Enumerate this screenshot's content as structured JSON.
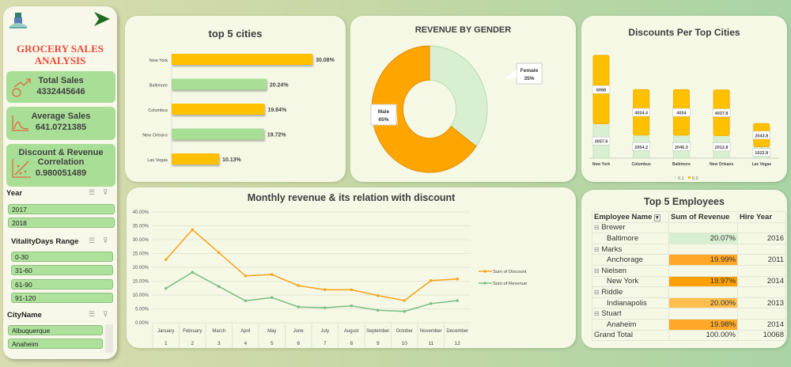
{
  "sidebar": {
    "title_line1": "GROCERY SALES",
    "title_line2": "ANALYSIS",
    "kpis": [
      {
        "label": "Total Sales",
        "value": "4332445646",
        "icon": "money-growth-icon"
      },
      {
        "label": "Average Sales",
        "value": "641.0721385",
        "icon": "chart-curve-icon"
      },
      {
        "label": "Discount & Revenue",
        "label2": "Correlation",
        "value": "0.980051489",
        "icon": "scatter-icon"
      }
    ],
    "slicers": [
      {
        "title": "Year",
        "items": [
          "2017",
          "2018"
        ]
      },
      {
        "title": "VitalityDays Range",
        "items": [
          "0-30",
          "31-60",
          "61-90",
          "91-120"
        ]
      },
      {
        "title": "CityName",
        "items": [
          "Albuquerque",
          "Anaheim"
        ]
      }
    ]
  },
  "colors": {
    "orange": "#ffa500",
    "yellow": "#ffc000",
    "green": "#a9de97",
    "light_green": "#d8efd2",
    "title_red": "#e8493a"
  },
  "chart_data": [
    {
      "type": "bar",
      "orientation": "horizontal",
      "title": "top 5 cities",
      "categories": [
        "New York",
        "Baltimore",
        "Columbus",
        "New Orleans",
        "Las Vegas"
      ],
      "values": [
        30.08,
        20.24,
        19.84,
        19.72,
        10.13
      ],
      "labels": [
        "30.08%",
        "20.24%",
        "19.84%",
        "19.72%",
        "10.13%"
      ]
    },
    {
      "type": "pie",
      "donut": true,
      "title": "REVENUE BY GENDER",
      "slices": [
        {
          "name": "Female",
          "value": 35,
          "label": "35%"
        },
        {
          "name": "Male",
          "value": 65,
          "label": "65%"
        }
      ]
    },
    {
      "type": "bar",
      "stacked": true,
      "title": "Discounts Per Top Cities",
      "categories": [
        "New York",
        "Columbus",
        "Baltimore",
        "New Orleans",
        "Las Vegas"
      ],
      "series": [
        {
          "name": "0.1",
          "values": [
            3057.6,
            2054.2,
            2046.3,
            2012.8,
            1022.8
          ],
          "labels": [
            "3057.6",
            "2054.2",
            "2046.3",
            "2012.8",
            "1022.8"
          ]
        },
        {
          "name": "0.2",
          "values": [
            6068,
            4034.4,
            4034,
            4037.8,
            2043.8
          ],
          "labels": [
            "6068",
            "4034.4",
            "4034",
            "4037.8",
            "2043.8"
          ]
        }
      ],
      "legend": "bottom"
    },
    {
      "type": "line",
      "title": "Monthly revenue & its relation with discount",
      "categories": [
        "January",
        "February",
        "March",
        "April",
        "May",
        "June",
        "July",
        "August",
        "September",
        "October",
        "November",
        "December"
      ],
      "category_numbers": [
        "1",
        "2",
        "3",
        "4",
        "5",
        "6",
        "7",
        "8",
        "9",
        "10",
        "11",
        "12"
      ],
      "y_ticks": [
        "0.00%",
        "5.00%",
        "10.00%",
        "15.00%",
        "20.00%",
        "25.00%",
        "30.00%",
        "35.00%",
        "40.00%"
      ],
      "ylim": [
        0,
        40
      ],
      "grid": true,
      "legend": "right",
      "series": [
        {
          "name": "Sum of Discount",
          "values": [
            22.8,
            33.6,
            25.3,
            16.9,
            17.4,
            13.4,
            11.9,
            11.9,
            9.8,
            8.0,
            15.2,
            15.8
          ]
        },
        {
          "name": "Sum of Revenue",
          "values": [
            12.4,
            18.2,
            13.1,
            7.9,
            9.1,
            5.7,
            5.4,
            6.1,
            4.5,
            4.1,
            6.9,
            8.0
          ]
        }
      ]
    }
  ],
  "employees": {
    "title": "Top 5 Employees",
    "headers": [
      "Employee Name",
      "Sum of Revenue",
      "Hire Year"
    ],
    "groups": [
      {
        "name": "Brewer",
        "city": "Baltimore",
        "revenue": "20.07%",
        "year": "2016"
      },
      {
        "name": "Marks",
        "city": "Anchorage",
        "revenue": "19.99%",
        "year": "2011"
      },
      {
        "name": "Nielsen",
        "city": "New York",
        "revenue": "19.97%",
        "year": "2014"
      },
      {
        "name": "Riddle",
        "city": "Indianapolis",
        "revenue": "20.00%",
        "year": "2013"
      },
      {
        "name": "Stuart",
        "city": "Anaheim",
        "revenue": "19.98%",
        "year": "2014"
      }
    ],
    "total": {
      "label": "Grand Total",
      "revenue": "100.00%",
      "year": "10068"
    }
  }
}
